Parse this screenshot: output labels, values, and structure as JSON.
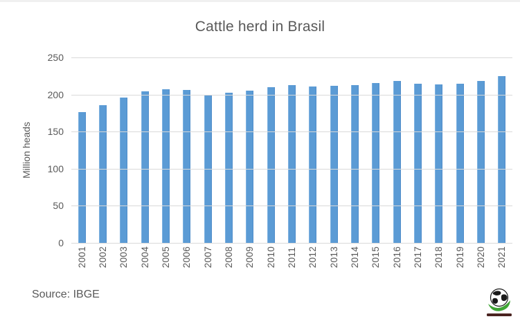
{
  "title": "Cattle herd in Brasil",
  "chart_data": {
    "type": "bar",
    "title": "Cattle herd in Brasil",
    "xlabel": "",
    "ylabel": "Million heads",
    "ylim": [
      0,
      250
    ],
    "yticks": [
      0,
      50,
      100,
      150,
      200,
      250
    ],
    "grid": true,
    "legend": false,
    "bar_color": "#5b9bd5",
    "categories": [
      "2001",
      "2002",
      "2003",
      "2004",
      "2005",
      "2006",
      "2007",
      "2008",
      "2009",
      "2010",
      "2011",
      "2012",
      "2013",
      "2014",
      "2015",
      "2016",
      "2017",
      "2018",
      "2019",
      "2020",
      "2021"
    ],
    "values": [
      176.4,
      185.3,
      195.6,
      204.5,
      207.2,
      205.9,
      199.8,
      202.3,
      205.3,
      209.5,
      212.8,
      211.3,
      211.8,
      212.3,
      215.2,
      218.2,
      214.9,
      213.5,
      215.0,
      218.2,
      224.6
    ]
  },
  "footer": {
    "source_label": "Source: IBGE"
  },
  "colors": {
    "text_gray": "#595959",
    "gridline": "#d9d9d9",
    "bar": "#5b9bd5",
    "logo_green": "#3fa535",
    "logo_dark": "#4a2320"
  },
  "logo": {
    "name": "globe-logo"
  }
}
